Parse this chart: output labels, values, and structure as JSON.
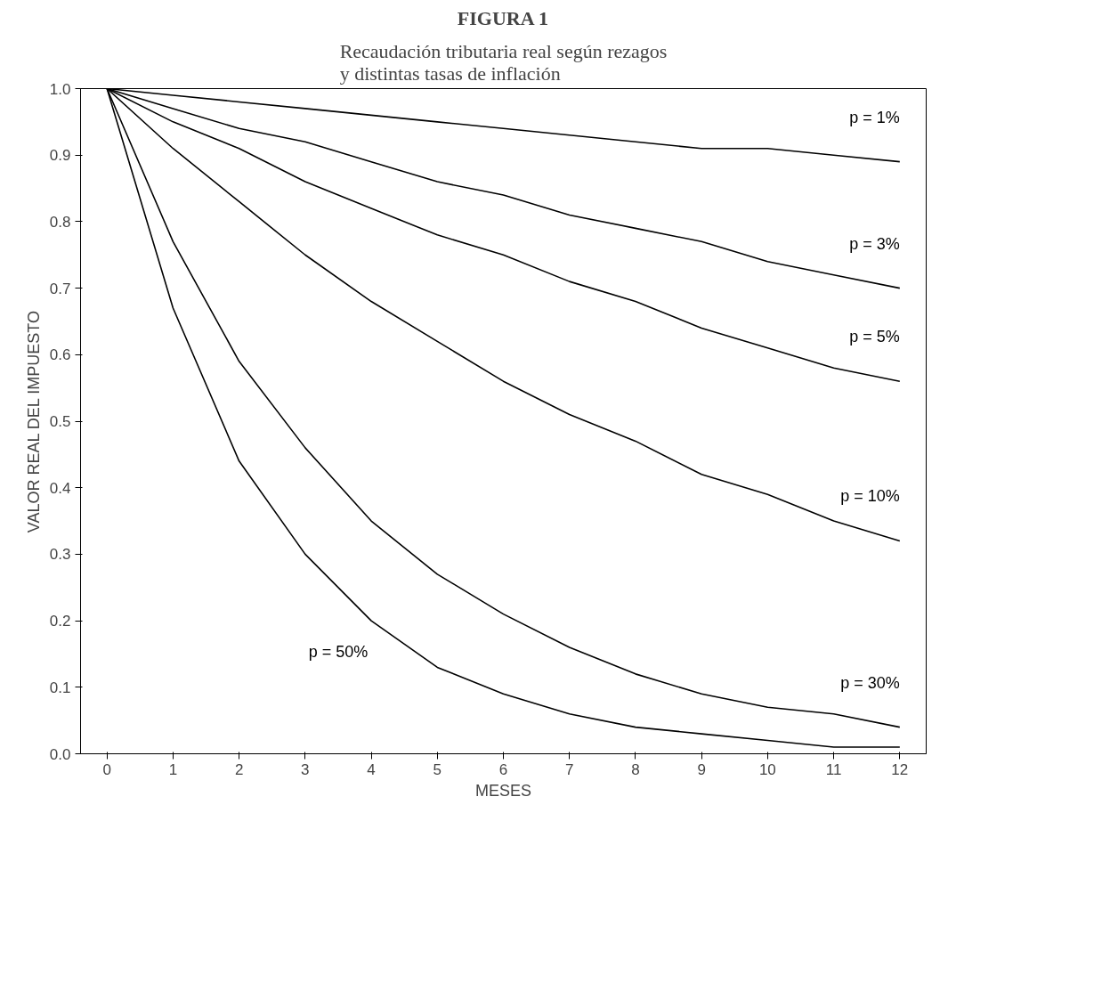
{
  "chart_data": {
    "type": "line",
    "title": "FIGURA 1",
    "subtitle": "Recaudación tributaria real según rezagos\ny distintas tasas de inflación",
    "xlabel": "MESES",
    "ylabel": "VALOR REAL DEL IMPUESTO",
    "x": [
      0,
      1,
      2,
      3,
      4,
      5,
      6,
      7,
      8,
      9,
      10,
      11,
      12
    ],
    "series": [
      {
        "name": "p = 1%",
        "color": "#000000",
        "values": [
          1,
          0.99,
          0.98,
          0.97,
          0.96,
          0.95,
          0.94,
          0.93,
          0.92,
          0.91,
          0.91,
          0.9,
          0.89
        ]
      },
      {
        "name": "p = 3%",
        "color": "#000000",
        "values": [
          1,
          0.97,
          0.94,
          0.92,
          0.89,
          0.86,
          0.84,
          0.81,
          0.79,
          0.77,
          0.74,
          0.72,
          0.7
        ]
      },
      {
        "name": "p = 5%",
        "color": "#000000",
        "values": [
          1,
          0.95,
          0.91,
          0.86,
          0.82,
          0.78,
          0.75,
          0.71,
          0.68,
          0.64,
          0.61,
          0.58,
          0.56
        ]
      },
      {
        "name": "p = 10%",
        "color": "#000000",
        "values": [
          1,
          0.91,
          0.83,
          0.75,
          0.68,
          0.62,
          0.56,
          0.51,
          0.47,
          0.42,
          0.39,
          0.35,
          0.32
        ]
      },
      {
        "name": "p = 30%",
        "color": "#000000",
        "values": [
          1,
          0.77,
          0.59,
          0.46,
          0.35,
          0.27,
          0.21,
          0.16,
          0.12,
          0.09,
          0.07,
          0.06,
          0.04
        ]
      },
      {
        "name": "p = 50%",
        "color": "#000000",
        "values": [
          1,
          0.67,
          0.44,
          0.3,
          0.2,
          0.13,
          0.09,
          0.06,
          0.04,
          0.03,
          0.02,
          0.01,
          0.01
        ]
      }
    ],
    "xlim": [
      -0.4,
      12.4
    ],
    "ylim": [
      0,
      1.0
    ],
    "xticks": [
      0,
      1,
      2,
      3,
      4,
      5,
      6,
      7,
      8,
      9,
      10,
      11,
      12
    ],
    "yticks": [
      {
        "value": 0,
        "label": "0.0"
      },
      0.1,
      0.2,
      0.3,
      0.4,
      0.5,
      0.6,
      0.7,
      0.8,
      0.9,
      {
        "value": 1.0,
        "label": "1.0"
      }
    ],
    "grid": false,
    "legend": false,
    "marker": "none",
    "line_style": "solid"
  }
}
